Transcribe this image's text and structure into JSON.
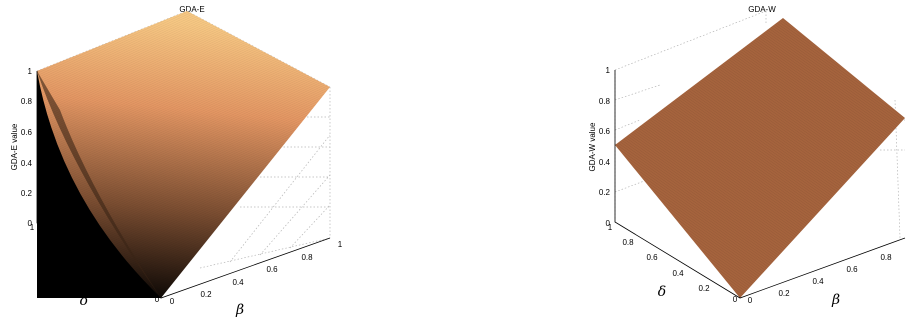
{
  "chart_data": [
    {
      "type": "surface",
      "title": "GDA-E",
      "zlabel": "GDA-E value",
      "xlabel": "β",
      "ylabel": "δ",
      "x_ticks": [
        "0",
        "0.2",
        "0.4",
        "0.6",
        "0.8",
        "1"
      ],
      "y_ticks": [
        "0",
        "0.2",
        "0.4",
        "0.6",
        "0.8",
        "1"
      ],
      "z_ticks": [
        "0",
        "0.2",
        "0.4",
        "0.6",
        "0.8",
        "1"
      ],
      "xlim": [
        0,
        1
      ],
      "ylim": [
        0,
        1
      ],
      "zlim": [
        0,
        1
      ],
      "grid": true,
      "colormap": "copper",
      "surface_corner_values": {
        "beta0_delta0": 0,
        "beta1_delta0": 0.5,
        "beta0_delta1": 1,
        "beta1_delta1": 1
      }
    },
    {
      "type": "surface",
      "title": "GDA-W",
      "zlabel": "GDA-W value",
      "xlabel": "β",
      "ylabel": "δ",
      "x_ticks": [
        "0",
        "0.2",
        "0.4",
        "0.6",
        "0.8"
      ],
      "y_ticks": [
        "0",
        "0.2",
        "0.4",
        "0.6",
        "0.8",
        "1"
      ],
      "z_ticks": [
        "0",
        "0.2",
        "0.4",
        "0.6",
        "0.8",
        "1"
      ],
      "xlim": [
        0,
        1
      ],
      "ylim": [
        0,
        1
      ],
      "zlim": [
        0,
        1
      ],
      "grid": true,
      "colormap": "copper",
      "surface_corner_values": {
        "beta0_delta0": 0,
        "beta1_delta0": 0.5,
        "beta0_delta1": 0.5,
        "beta1_delta1": 1
      }
    }
  ]
}
